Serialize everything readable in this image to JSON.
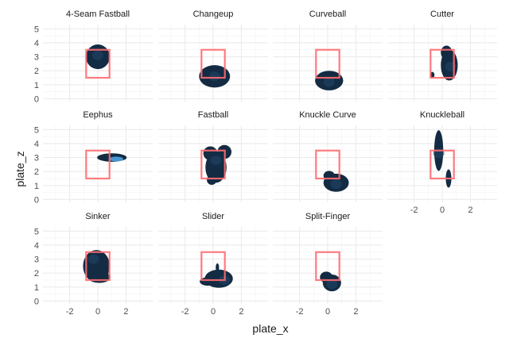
{
  "chart_data": {
    "type": "density2d-facet",
    "xlabel": "plate_x",
    "ylabel": "plate_z",
    "xlim": [
      -3.9,
      3.9
    ],
    "ylim": [
      -0.2,
      5.3
    ],
    "x_ticks": [
      "-2",
      "0",
      "2"
    ],
    "x_tick_values": [
      -2,
      0,
      2
    ],
    "y_ticks": [
      "0",
      "1",
      "2",
      "3",
      "4",
      "5"
    ],
    "y_tick_values": [
      0,
      1,
      2,
      3,
      4,
      5
    ],
    "grid": true,
    "strike_zone": {
      "x": [
        -0.83,
        0.83
      ],
      "z": [
        1.5,
        3.5
      ],
      "color": "#ff6b70"
    },
    "colors": {
      "density_low": "#132b43",
      "density_mid": "#1f4468",
      "density_high": "#56b1f7"
    },
    "facets": [
      {
        "title": "4-Seam Fastball",
        "blobs": [
          {
            "cx": 0,
            "cz": 3.0,
            "rx": 0.85,
            "rz": 0.88
          }
        ],
        "peak": {
          "cx": 0,
          "cz": 3.1
        }
      },
      {
        "title": "Changeup",
        "blobs": [
          {
            "cx": 0.1,
            "cz": 1.6,
            "rx": 1.1,
            "rz": 0.8
          }
        ],
        "peak": {
          "cx": 0.1,
          "cz": 1.6
        }
      },
      {
        "title": "Curveball",
        "blobs": [
          {
            "cx": 0.1,
            "cz": 1.3,
            "rx": 1.0,
            "rz": 0.7
          }
        ],
        "peak": {
          "cx": 0.1,
          "cz": 1.2
        }
      },
      {
        "title": "Cutter",
        "blobs": [
          {
            "cx": 0.5,
            "cz": 2.4,
            "rx": 0.6,
            "rz": 1.1
          },
          {
            "cx": 0.3,
            "cz": 3.3,
            "rx": 0.4,
            "rz": 0.5
          },
          {
            "cx": -0.7,
            "cz": 1.7,
            "rx": 0.15,
            "rz": 0.22
          }
        ],
        "peak": {
          "cx": 0.6,
          "cz": 2.3
        }
      },
      {
        "title": "Eephus",
        "blobs": [
          {
            "cx": 1.0,
            "cz": 3.0,
            "rx": 1.05,
            "rz": 0.3
          }
        ],
        "peak": {
          "cx": 1.3,
          "cz": 2.9
        }
      },
      {
        "title": "Fastball",
        "blobs": [
          {
            "cx": 0.2,
            "cz": 2.3,
            "rx": 0.75,
            "rz": 1.1
          },
          {
            "cx": -0.2,
            "cz": 3.3,
            "rx": 0.5,
            "rz": 0.5
          },
          {
            "cx": 0.8,
            "cz": 3.4,
            "rx": 0.5,
            "rz": 0.5
          },
          {
            "cx": -0.1,
            "cz": 1.4,
            "rx": 0.35,
            "rz": 0.35
          }
        ],
        "peak": {
          "cx": 0.2,
          "cz": 2.8
        }
      },
      {
        "title": "Knuckle Curve",
        "blobs": [
          {
            "cx": 0.6,
            "cz": 1.2,
            "rx": 0.9,
            "rz": 0.65
          },
          {
            "cx": 0.1,
            "cz": 1.7,
            "rx": 0.4,
            "rz": 0.35
          }
        ],
        "peak": {
          "cx": 0.6,
          "cz": 1.1
        }
      },
      {
        "title": "Knuckleball",
        "blobs": [
          {
            "cx": -0.25,
            "cz": 3.5,
            "rx": 0.32,
            "rz": 1.45
          },
          {
            "cx": 0.45,
            "cz": 1.5,
            "rx": 0.2,
            "rz": 0.65
          }
        ],
        "peak": {
          "cx": -0.25,
          "cz": 3.3
        }
      },
      {
        "title": "Sinker",
        "blobs": [
          {
            "cx": -0.1,
            "cz": 2.5,
            "rx": 0.95,
            "rz": 1.15
          },
          {
            "cx": 0.1,
            "cz": 1.7,
            "rx": 0.8,
            "rz": 0.4
          }
        ],
        "peak": {
          "cx": -0.3,
          "cz": 3.0
        }
      },
      {
        "title": "Slider",
        "blobs": [
          {
            "cx": 0.4,
            "cz": 1.6,
            "rx": 1.0,
            "rz": 0.65
          },
          {
            "cx": -0.4,
            "cz": 1.4,
            "rx": 0.55,
            "rz": 0.3
          },
          {
            "cx": 0.3,
            "cz": 2.4,
            "rx": 0.12,
            "rz": 0.3
          }
        ],
        "peak": {
          "cx": 0.8,
          "cz": 1.5
        }
      },
      {
        "title": "Split-Finger",
        "blobs": [
          {
            "cx": 0.3,
            "cz": 1.3,
            "rx": 0.65,
            "rz": 0.6
          },
          {
            "cx": -0.1,
            "cz": 1.7,
            "rx": 0.45,
            "rz": 0.4
          }
        ],
        "peak": {
          "cx": 0.3,
          "cz": 1.2
        }
      }
    ]
  }
}
